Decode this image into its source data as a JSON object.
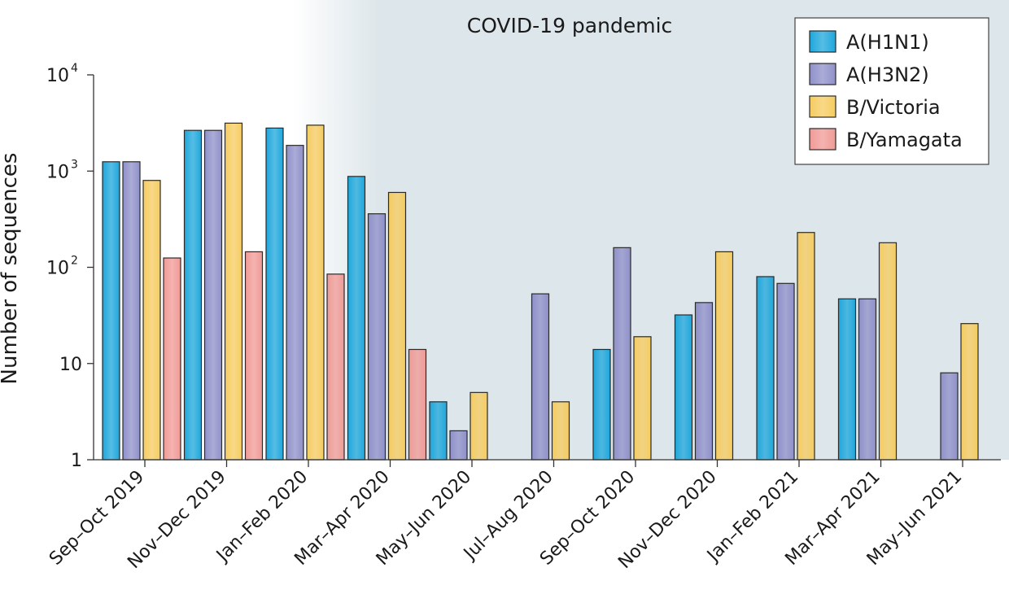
{
  "chart_data": {
    "type": "bar",
    "annotation": "COVID-19 pandemic",
    "ylabel": "Number of sequences",
    "y_scale": "log",
    "ylim": [
      1,
      10000
    ],
    "y_ticks": [
      {
        "value": 1,
        "base": "1",
        "exp": ""
      },
      {
        "value": 10,
        "base": "10",
        "exp": ""
      },
      {
        "value": 100,
        "base": "10",
        "exp": "2"
      },
      {
        "value": 1000,
        "base": "10",
        "exp": "3"
      },
      {
        "value": 10000,
        "base": "10",
        "exp": "4"
      }
    ],
    "categories": [
      "Sep–Oct 2019",
      "Nov–Dec 2019",
      "Jan–Feb 2020",
      "Mar–Apr 2020",
      "May–Jun 2020",
      "Jul–Aug 2020",
      "Sep–Oct 2020",
      "Nov–Dec 2020",
      "Jan–Feb 2021",
      "Mar–Apr 2021",
      "May–Jun 2021"
    ],
    "legend_position": "top-right",
    "series": [
      {
        "name": "A(H1N1)",
        "color": "#1ea7dc",
        "values": [
          1250,
          2650,
          2800,
          880,
          4,
          null,
          14,
          32,
          80,
          47,
          null
        ]
      },
      {
        "name": "A(H3N2)",
        "color": "#8f90c9",
        "values": [
          1250,
          2650,
          1850,
          360,
          2,
          53,
          160,
          43,
          68,
          47,
          8
        ]
      },
      {
        "name": "B/Victoria",
        "color": "#f6cc60",
        "values": [
          800,
          3150,
          3000,
          600,
          5,
          4,
          19,
          145,
          230,
          180,
          26
        ]
      },
      {
        "name": "B/Yamagata",
        "color": "#f09a96",
        "values": [
          125,
          145,
          85,
          14,
          null,
          null,
          null,
          null,
          null,
          null,
          null
        ]
      }
    ]
  }
}
